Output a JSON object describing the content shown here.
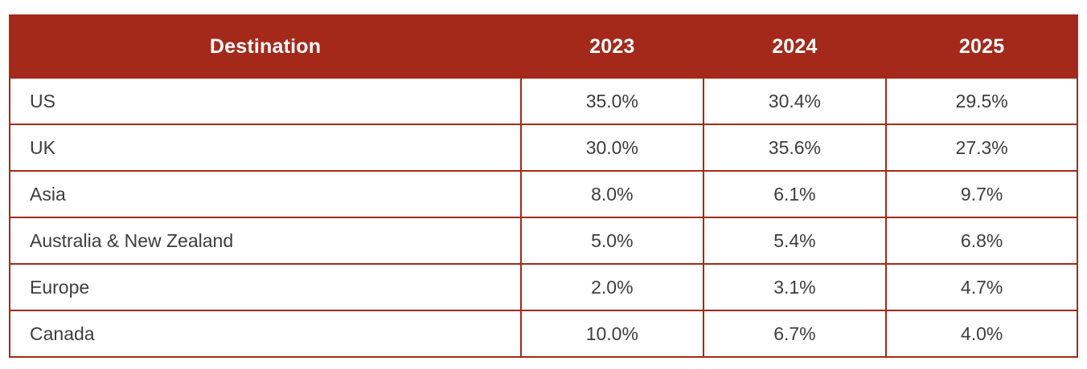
{
  "colors": {
    "header_bg": "#a5291a",
    "border": "#a5291a",
    "header_text": "#ffffff",
    "body_text": "#3d3d3d",
    "row_bg": "#ffffff",
    "page_bg": "#ffffff"
  },
  "table": {
    "columns": [
      "Destination",
      "2023",
      "2024",
      "2025"
    ],
    "rows": [
      {
        "destination": "US",
        "values": [
          "35.0%",
          "30.4%",
          "29.5%"
        ]
      },
      {
        "destination": "UK",
        "values": [
          "30.0%",
          "35.6%",
          "27.3%"
        ]
      },
      {
        "destination": "Asia",
        "values": [
          "8.0%",
          "6.1%",
          "9.7%"
        ]
      },
      {
        "destination": "Australia & New Zealand",
        "values": [
          "5.0%",
          "5.4%",
          "6.8%"
        ]
      },
      {
        "destination": "Europe",
        "values": [
          "2.0%",
          "3.1%",
          "4.7%"
        ]
      },
      {
        "destination": "Canada",
        "values": [
          "10.0%",
          "6.7%",
          "4.0%"
        ]
      }
    ]
  },
  "chart_data": {
    "type": "table",
    "title": "",
    "columns": [
      "Destination",
      "2023",
      "2024",
      "2025"
    ],
    "categories": [
      "US",
      "UK",
      "Asia",
      "Australia & New Zealand",
      "Europe",
      "Canada"
    ],
    "series": [
      {
        "name": "2023",
        "values": [
          35.0,
          30.0,
          8.0,
          5.0,
          2.0,
          10.0
        ]
      },
      {
        "name": "2024",
        "values": [
          30.4,
          35.6,
          6.1,
          5.4,
          3.1,
          6.7
        ]
      },
      {
        "name": "2025",
        "values": [
          29.5,
          27.3,
          9.7,
          6.8,
          4.7,
          4.0
        ]
      }
    ],
    "value_unit": "%"
  }
}
